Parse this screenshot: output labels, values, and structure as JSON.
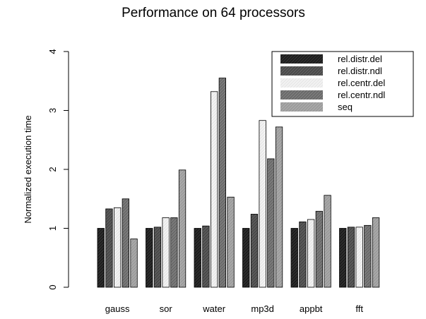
{
  "chart_data": {
    "type": "bar",
    "title": "Performance on 64 processors",
    "xlabel": "",
    "ylabel": "Normalized execution time",
    "ylim": [
      0,
      4
    ],
    "yticks": [
      "0",
      "1",
      "2",
      "3",
      "4"
    ],
    "grid": false,
    "legend_position": "top-right",
    "categories": [
      "gauss",
      "sor",
      "water",
      "mp3d",
      "appbt",
      "fft"
    ],
    "series": [
      {
        "name": "rel.distr.del",
        "color": "#2a2a2a",
        "values": [
          1.0,
          1.0,
          1.0,
          1.0,
          1.0,
          1.0
        ]
      },
      {
        "name": "rel.distr.ndl",
        "color": "#5a5a5a",
        "values": [
          1.33,
          1.02,
          1.04,
          1.24,
          1.11,
          1.02
        ]
      },
      {
        "name": "rel.centr.del",
        "color": "#ececec",
        "values": [
          1.35,
          1.18,
          3.32,
          2.83,
          1.15,
          1.02
        ]
      },
      {
        "name": "rel.centr.ndl",
        "color": "#7a7a7a",
        "values": [
          1.5,
          1.18,
          3.55,
          2.18,
          1.29,
          1.05
        ]
      },
      {
        "name": "seq",
        "color": "#a8a8a8",
        "values": [
          0.82,
          1.99,
          1.53,
          2.72,
          1.56,
          1.18
        ]
      }
    ]
  }
}
